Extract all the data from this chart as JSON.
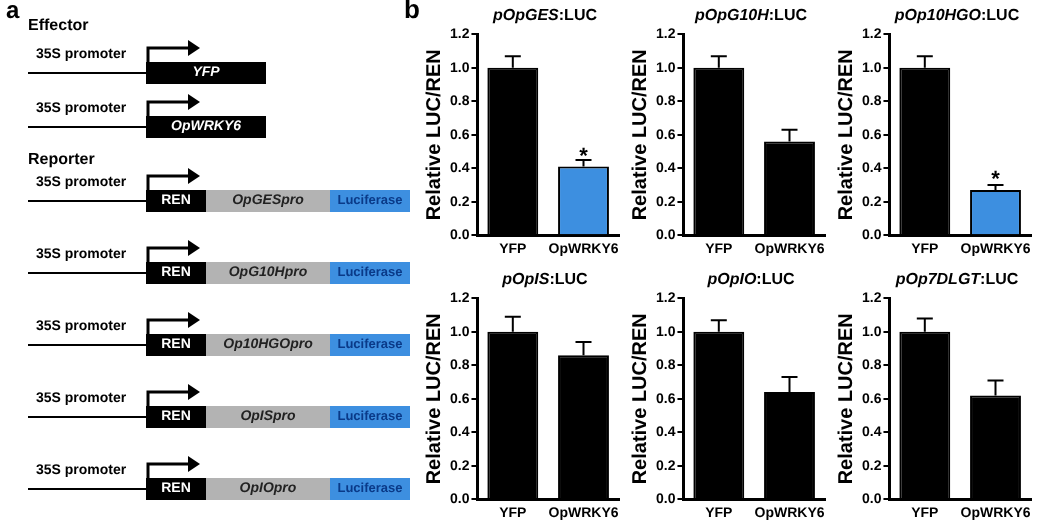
{
  "chart_data": [
    {
      "type": "other",
      "title": "a",
      "annotations": [
        "Effector",
        "35S promoter",
        "YFP",
        "35S promoter",
        "OpWRKY6",
        "Reporter",
        "35S promoter",
        "REN",
        "OpGESpro",
        "Luciferase",
        "35S promoter",
        "REN",
        "OpG10Hpro",
        "Luciferase",
        "35S promoter",
        "REN",
        "Op10HGOpro",
        "Luciferase",
        "35S promoter",
        "REN",
        "OpISpro",
        "Luciferase",
        "35S promoter",
        "REN",
        "OpIOpro",
        "Luciferase"
      ]
    },
    {
      "type": "bar",
      "title": "pOpGES:LUC",
      "ylabel": "Relative LUC/REN",
      "categories": [
        "YFP",
        "OpWRKY6"
      ],
      "values": [
        1.0,
        0.41
      ],
      "colors": [
        "#000000",
        "#3d8fe0"
      ],
      "errors": [
        [
          1.0,
          1.07
        ],
        [
          0.41,
          0.45
        ]
      ],
      "ylim": [
        0,
        1.2
      ],
      "yticks": [
        {
          "value": 0,
          "label": "0.0"
        },
        {
          "value": 0.2,
          "label": "0.2"
        },
        {
          "value": 0.4,
          "label": "0.4"
        },
        {
          "value": 0.6,
          "label": "0.6"
        },
        {
          "value": 0.8,
          "label": "0.8"
        },
        {
          "value": 1.0,
          "label": "1.0"
        },
        {
          "value": 1.2,
          "label": "1.2"
        }
      ],
      "annotations": [
        "b",
        {
          "text": "*",
          "x": "OpWRKY6",
          "y": 0.47
        }
      ]
    },
    {
      "type": "bar",
      "title": "pOpG10H:LUC",
      "ylabel": "Relative LUC/REN",
      "categories": [
        "YFP",
        "OpWRKY6"
      ],
      "values": [
        1.0,
        0.56
      ],
      "colors": [
        "#000000",
        "#000000"
      ],
      "errors": [
        [
          1.0,
          1.07
        ],
        [
          0.56,
          0.63
        ]
      ],
      "ylim": [
        0,
        1.2
      ],
      "yticks": [
        {
          "value": 0,
          "label": "0.0"
        },
        {
          "value": 0.2,
          "label": "0.2"
        },
        {
          "value": 0.4,
          "label": "0.4"
        },
        {
          "value": 0.6,
          "label": "0.6"
        },
        {
          "value": 0.8,
          "label": "0.8"
        },
        {
          "value": 1.0,
          "label": "1.0"
        },
        {
          "value": 1.2,
          "label": "1.2"
        }
      ]
    },
    {
      "type": "bar",
      "title": "pOp10HGO:LUC",
      "ylabel": "Relative LUC/REN",
      "categories": [
        "YFP",
        "OpWRKY6"
      ],
      "values": [
        1.0,
        0.27
      ],
      "colors": [
        "#000000",
        "#3d8fe0"
      ],
      "errors": [
        [
          1.0,
          1.07
        ],
        [
          0.27,
          0.3
        ]
      ],
      "ylim": [
        0,
        1.2
      ],
      "yticks": [
        {
          "value": 0,
          "label": "0.0"
        },
        {
          "value": 0.2,
          "label": "0.2"
        },
        {
          "value": 0.4,
          "label": "0.4"
        },
        {
          "value": 0.6,
          "label": "0.6"
        },
        {
          "value": 0.8,
          "label": "0.8"
        },
        {
          "value": 1.0,
          "label": "1.0"
        },
        {
          "value": 1.2,
          "label": "1.2"
        }
      ],
      "annotations": [
        {
          "text": "*",
          "x": "OpWRKY6",
          "y": 0.33
        }
      ]
    },
    {
      "type": "bar",
      "title": "pOpIS:LUC",
      "ylabel": "Relative LUC/REN",
      "categories": [
        "YFP",
        "OpWRKY6"
      ],
      "values": [
        1.0,
        0.86
      ],
      "colors": [
        "#000000",
        "#000000"
      ],
      "errors": [
        [
          1.0,
          1.09
        ],
        [
          0.86,
          0.94
        ]
      ],
      "ylim": [
        0,
        1.2
      ],
      "yticks": [
        {
          "value": 0,
          "label": "0.0"
        },
        {
          "value": 0.2,
          "label": "0.2"
        },
        {
          "value": 0.4,
          "label": "0.4"
        },
        {
          "value": 0.6,
          "label": "0.6"
        },
        {
          "value": 0.8,
          "label": "0.8"
        },
        {
          "value": 1.0,
          "label": "1.0"
        },
        {
          "value": 1.2,
          "label": "1.2"
        }
      ]
    },
    {
      "type": "bar",
      "title": "pOpIO:LUC",
      "ylabel": "Relative LUC/REN",
      "categories": [
        "YFP",
        "OpWRKY6"
      ],
      "values": [
        1.0,
        0.64
      ],
      "colors": [
        "#000000",
        "#000000"
      ],
      "errors": [
        [
          1.0,
          1.07
        ],
        [
          0.64,
          0.73
        ]
      ],
      "ylim": [
        0,
        1.2
      ],
      "yticks": [
        {
          "value": 0,
          "label": "0.0"
        },
        {
          "value": 0.2,
          "label": "0.2"
        },
        {
          "value": 0.4,
          "label": "0.4"
        },
        {
          "value": 0.6,
          "label": "0.6"
        },
        {
          "value": 0.8,
          "label": "0.8"
        },
        {
          "value": 1.0,
          "label": "1.0"
        },
        {
          "value": 1.2,
          "label": "1.2"
        }
      ]
    },
    {
      "type": "bar",
      "title": "pOp7DLGT:LUC",
      "ylabel": "Relative LUC/REN",
      "categories": [
        "YFP",
        "OpWRKY6"
      ],
      "values": [
        1.0,
        0.62
      ],
      "colors": [
        "#000000",
        "#000000"
      ],
      "errors": [
        [
          1.0,
          1.08
        ],
        [
          0.62,
          0.71
        ]
      ],
      "ylim": [
        0,
        1.2
      ],
      "yticks": [
        {
          "value": 0,
          "label": "0.0"
        },
        {
          "value": 0.2,
          "label": "0.2"
        },
        {
          "value": 0.4,
          "label": "0.4"
        },
        {
          "value": 0.6,
          "label": "0.6"
        },
        {
          "value": 0.8,
          "label": "0.8"
        },
        {
          "value": 1.0,
          "label": "1.0"
        },
        {
          "value": 1.2,
          "label": "1.2"
        }
      ]
    }
  ]
}
